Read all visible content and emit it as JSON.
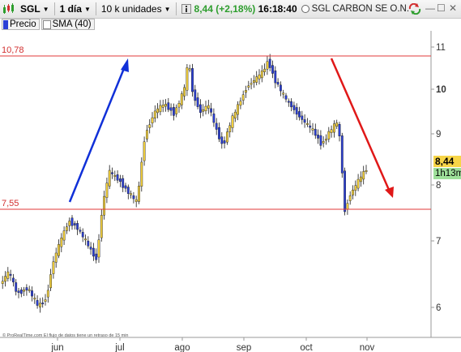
{
  "toolbar": {
    "symbol": "SGL",
    "period": "1 día",
    "units": "10 k unidades",
    "price": "8,44",
    "change": "(+2,18%)",
    "time": "16:18:40",
    "instrument": "SGL CARBON SE O.N."
  },
  "legend": {
    "price": "Precio",
    "sma": "SMA (40)"
  },
  "levels": {
    "upper": "10,78",
    "lower": "7,55"
  },
  "axis": {
    "y_ticks": [
      "11",
      "10",
      "9",
      "8",
      "7",
      "6"
    ],
    "x_ticks": [
      "jun",
      "jul",
      "ago",
      "sep",
      "oct",
      "nov"
    ]
  },
  "last_price": "8,44",
  "countdown": "1h13m",
  "credit": "© ProRealTime.com  El flujo de datos tiene un retraso de 15 min",
  "colors": {
    "up_candle": "#f2cf3c",
    "down_candle": "#2b3fd6",
    "level_line": "#e23a3a",
    "arrow_up": "#1030d8",
    "arrow_down": "#e01818"
  }
}
